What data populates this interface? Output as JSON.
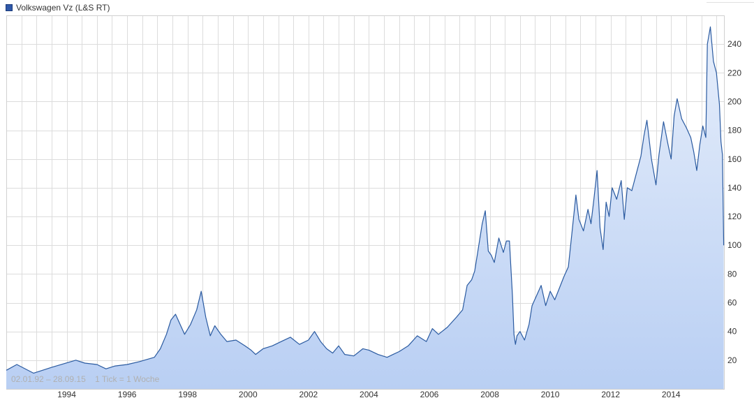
{
  "legend": {
    "label": "Volkswagen Vz (L&S RT)"
  },
  "info": {
    "range": "02.01.92 – 28.09.15",
    "tick": "1 Tick = 1 Woche"
  },
  "colors": {
    "line": "#2a5aa0",
    "fill_top": "#e6eefb",
    "fill_bottom": "#b9cff3",
    "grid": "#dcdcdc",
    "swatch": "#2f58a8"
  },
  "chart_data": {
    "type": "area",
    "title": "",
    "xlabel": "",
    "ylabel": "",
    "xlim": [
      1992.0,
      2015.75
    ],
    "ylim": [
      0,
      260
    ],
    "grid": true,
    "y_axis_side": "right",
    "x_ticks": [
      1994,
      1996,
      1998,
      2000,
      2002,
      2004,
      2006,
      2008,
      2010,
      2012,
      2014
    ],
    "y_ticks": [
      20,
      40,
      60,
      80,
      100,
      120,
      140,
      160,
      180,
      200,
      220,
      240
    ],
    "series": [
      {
        "x": [
          1992.0,
          1992.35,
          1992.9,
          1993.5,
          1994.3,
          1994.6,
          1995.0,
          1995.3,
          1995.6,
          1996.0,
          1996.4,
          1996.9,
          1997.1,
          1997.3,
          1997.45,
          1997.6,
          1997.75,
          1997.9,
          1998.1,
          1998.3,
          1998.45,
          1998.6,
          1998.75,
          1998.9,
          1999.1,
          1999.3,
          1999.6,
          1999.9,
          2000.1,
          2000.25,
          2000.5,
          2000.8,
          2001.1,
          2001.4,
          2001.7,
          2002.0,
          2002.2,
          2002.4,
          2002.6,
          2002.8,
          2003.0,
          2003.2,
          2003.5,
          2003.8,
          2004.0,
          2004.3,
          2004.6,
          2004.8,
          2005.0,
          2005.3,
          2005.6,
          2005.9,
          2006.1,
          2006.3,
          2006.6,
          2006.9,
          2007.1,
          2007.25,
          2007.4,
          2007.5,
          2007.6,
          2007.75,
          2007.85,
          2007.95,
          2008.05,
          2008.15,
          2008.3,
          2008.45,
          2008.55,
          2008.65,
          2008.75,
          2008.8,
          2008.85,
          2008.9,
          2009.0,
          2009.15,
          2009.3,
          2009.4,
          2009.55,
          2009.7,
          2009.85,
          2010.0,
          2010.15,
          2010.3,
          2010.45,
          2010.6,
          2010.75,
          2010.85,
          2010.95,
          2011.1,
          2011.25,
          2011.35,
          2011.45,
          2011.55,
          2011.65,
          2011.75,
          2011.85,
          2011.95,
          2012.05,
          2012.2,
          2012.35,
          2012.45,
          2012.55,
          2012.7,
          2012.85,
          2013.0,
          2013.1,
          2013.2,
          2013.35,
          2013.5,
          2013.6,
          2013.75,
          2013.9,
          2014.0,
          2014.1,
          2014.2,
          2014.35,
          2014.5,
          2014.65,
          2014.75,
          2014.85,
          2014.95,
          2015.05,
          2015.15,
          2015.2,
          2015.3,
          2015.4,
          2015.5,
          2015.6,
          2015.65,
          2015.7,
          2015.74
        ],
        "y": [
          13,
          17,
          11,
          15,
          20,
          18,
          17,
          14,
          16,
          17,
          19,
          22,
          28,
          38,
          48,
          52,
          45,
          38,
          45,
          55,
          68,
          50,
          37,
          44,
          38,
          33,
          34,
          30,
          27,
          24,
          28,
          30,
          33,
          36,
          31,
          34,
          40,
          33,
          28,
          25,
          30,
          24,
          23,
          28,
          27,
          24,
          22,
          24,
          26,
          30,
          37,
          33,
          42,
          38,
          43,
          50,
          55,
          72,
          76,
          82,
          95,
          115,
          124,
          96,
          93,
          88,
          105,
          95,
          103,
          103,
          65,
          38,
          31,
          37,
          40,
          34,
          45,
          58,
          65,
          72,
          58,
          68,
          62,
          70,
          78,
          85,
          115,
          135,
          118,
          110,
          125,
          115,
          133,
          152,
          112,
          97,
          130,
          120,
          140,
          132,
          145,
          118,
          140,
          138,
          150,
          162,
          176,
          187,
          160,
          142,
          163,
          186,
          170,
          160,
          190,
          202,
          188,
          182,
          175,
          165,
          152,
          170,
          183,
          175,
          240,
          252,
          228,
          220,
          198,
          172,
          163,
          100
        ]
      }
    ]
  }
}
